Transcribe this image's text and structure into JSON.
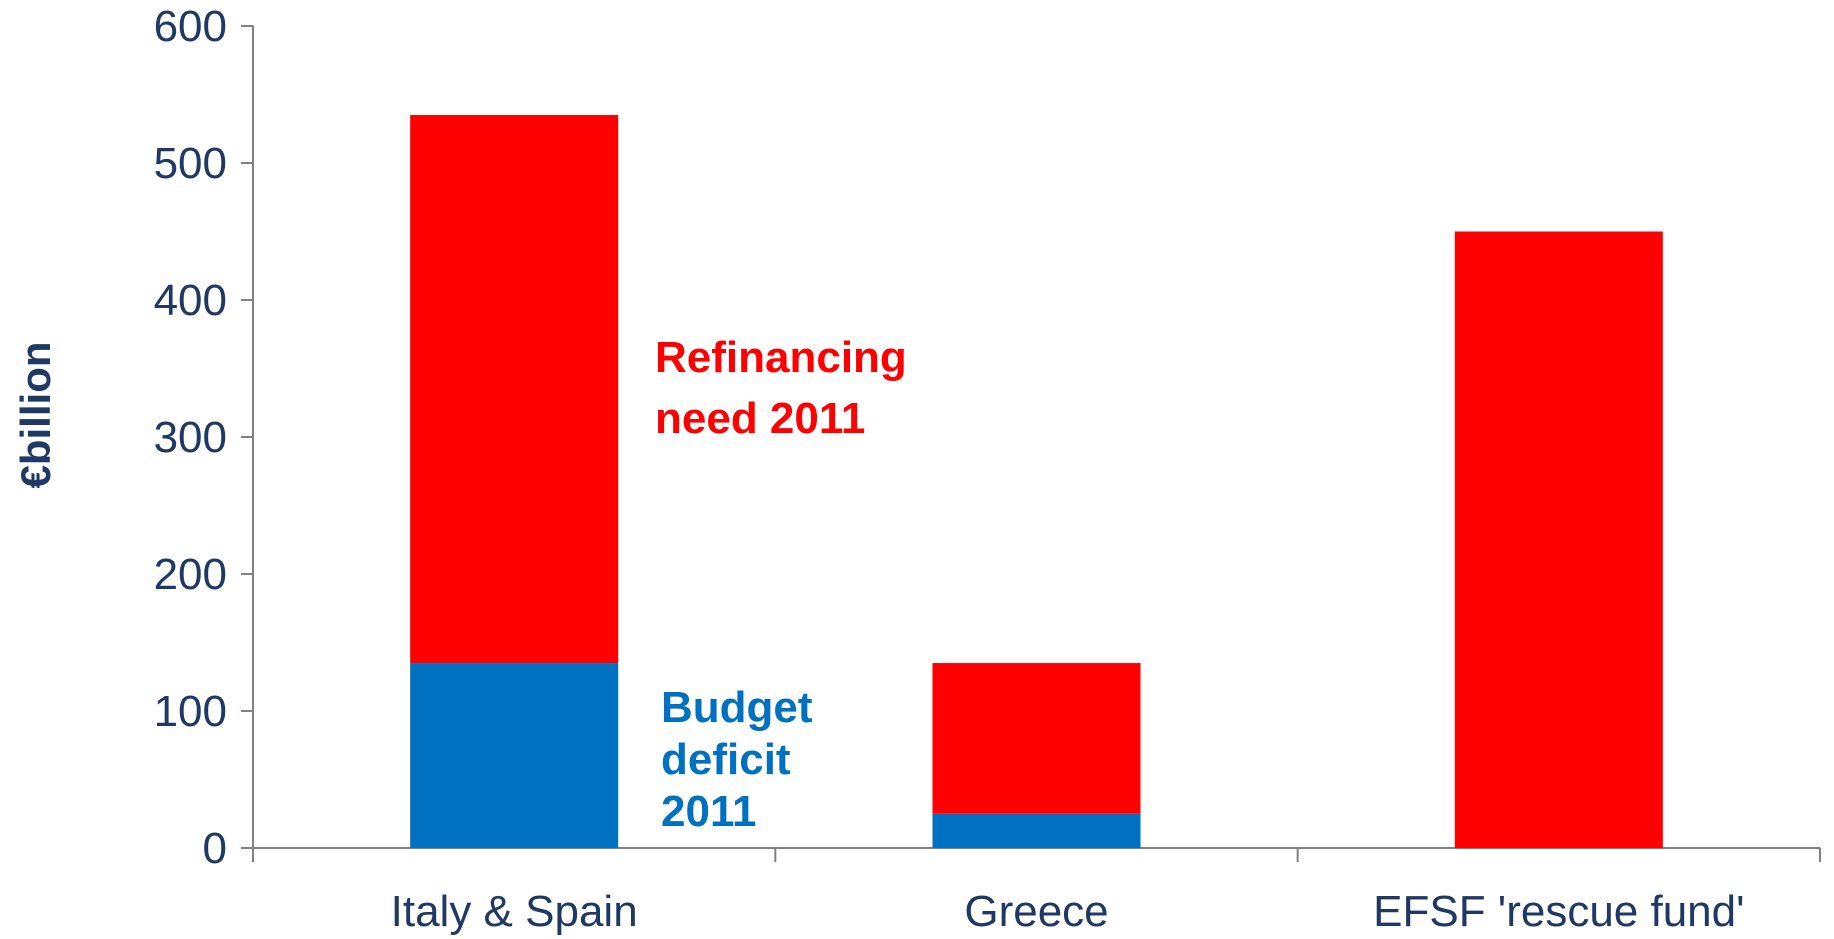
{
  "chart_data": {
    "type": "bar",
    "stacked": true,
    "categories": [
      "Italy & Spain",
      "Greece",
      "EFSF 'rescue fund'"
    ],
    "series": [
      {
        "name": "Budget deficit 2011",
        "values": [
          135,
          25,
          0
        ]
      },
      {
        "name": "Refinancing need 2011",
        "values": [
          400,
          110,
          450
        ]
      }
    ],
    "ylabel": "€billion",
    "xlabel": "",
    "title": "",
    "ylim": [
      0,
      600
    ],
    "yticks": [
      0,
      100,
      200,
      300,
      400,
      500,
      600
    ],
    "grid": false,
    "legend": "none",
    "annotations": [
      {
        "lines": [
          "Refinancing",
          "need 2011"
        ],
        "series": "Refinancing need 2011"
      },
      {
        "lines": [
          "Budget",
          "deficit",
          "2011"
        ],
        "series": "Budget deficit 2011"
      }
    ]
  },
  "colors": {
    "refinancing": "#ff0000",
    "deficit": "#0070c0",
    "axis_text": "#1f3864",
    "axis_line": "#808080"
  }
}
